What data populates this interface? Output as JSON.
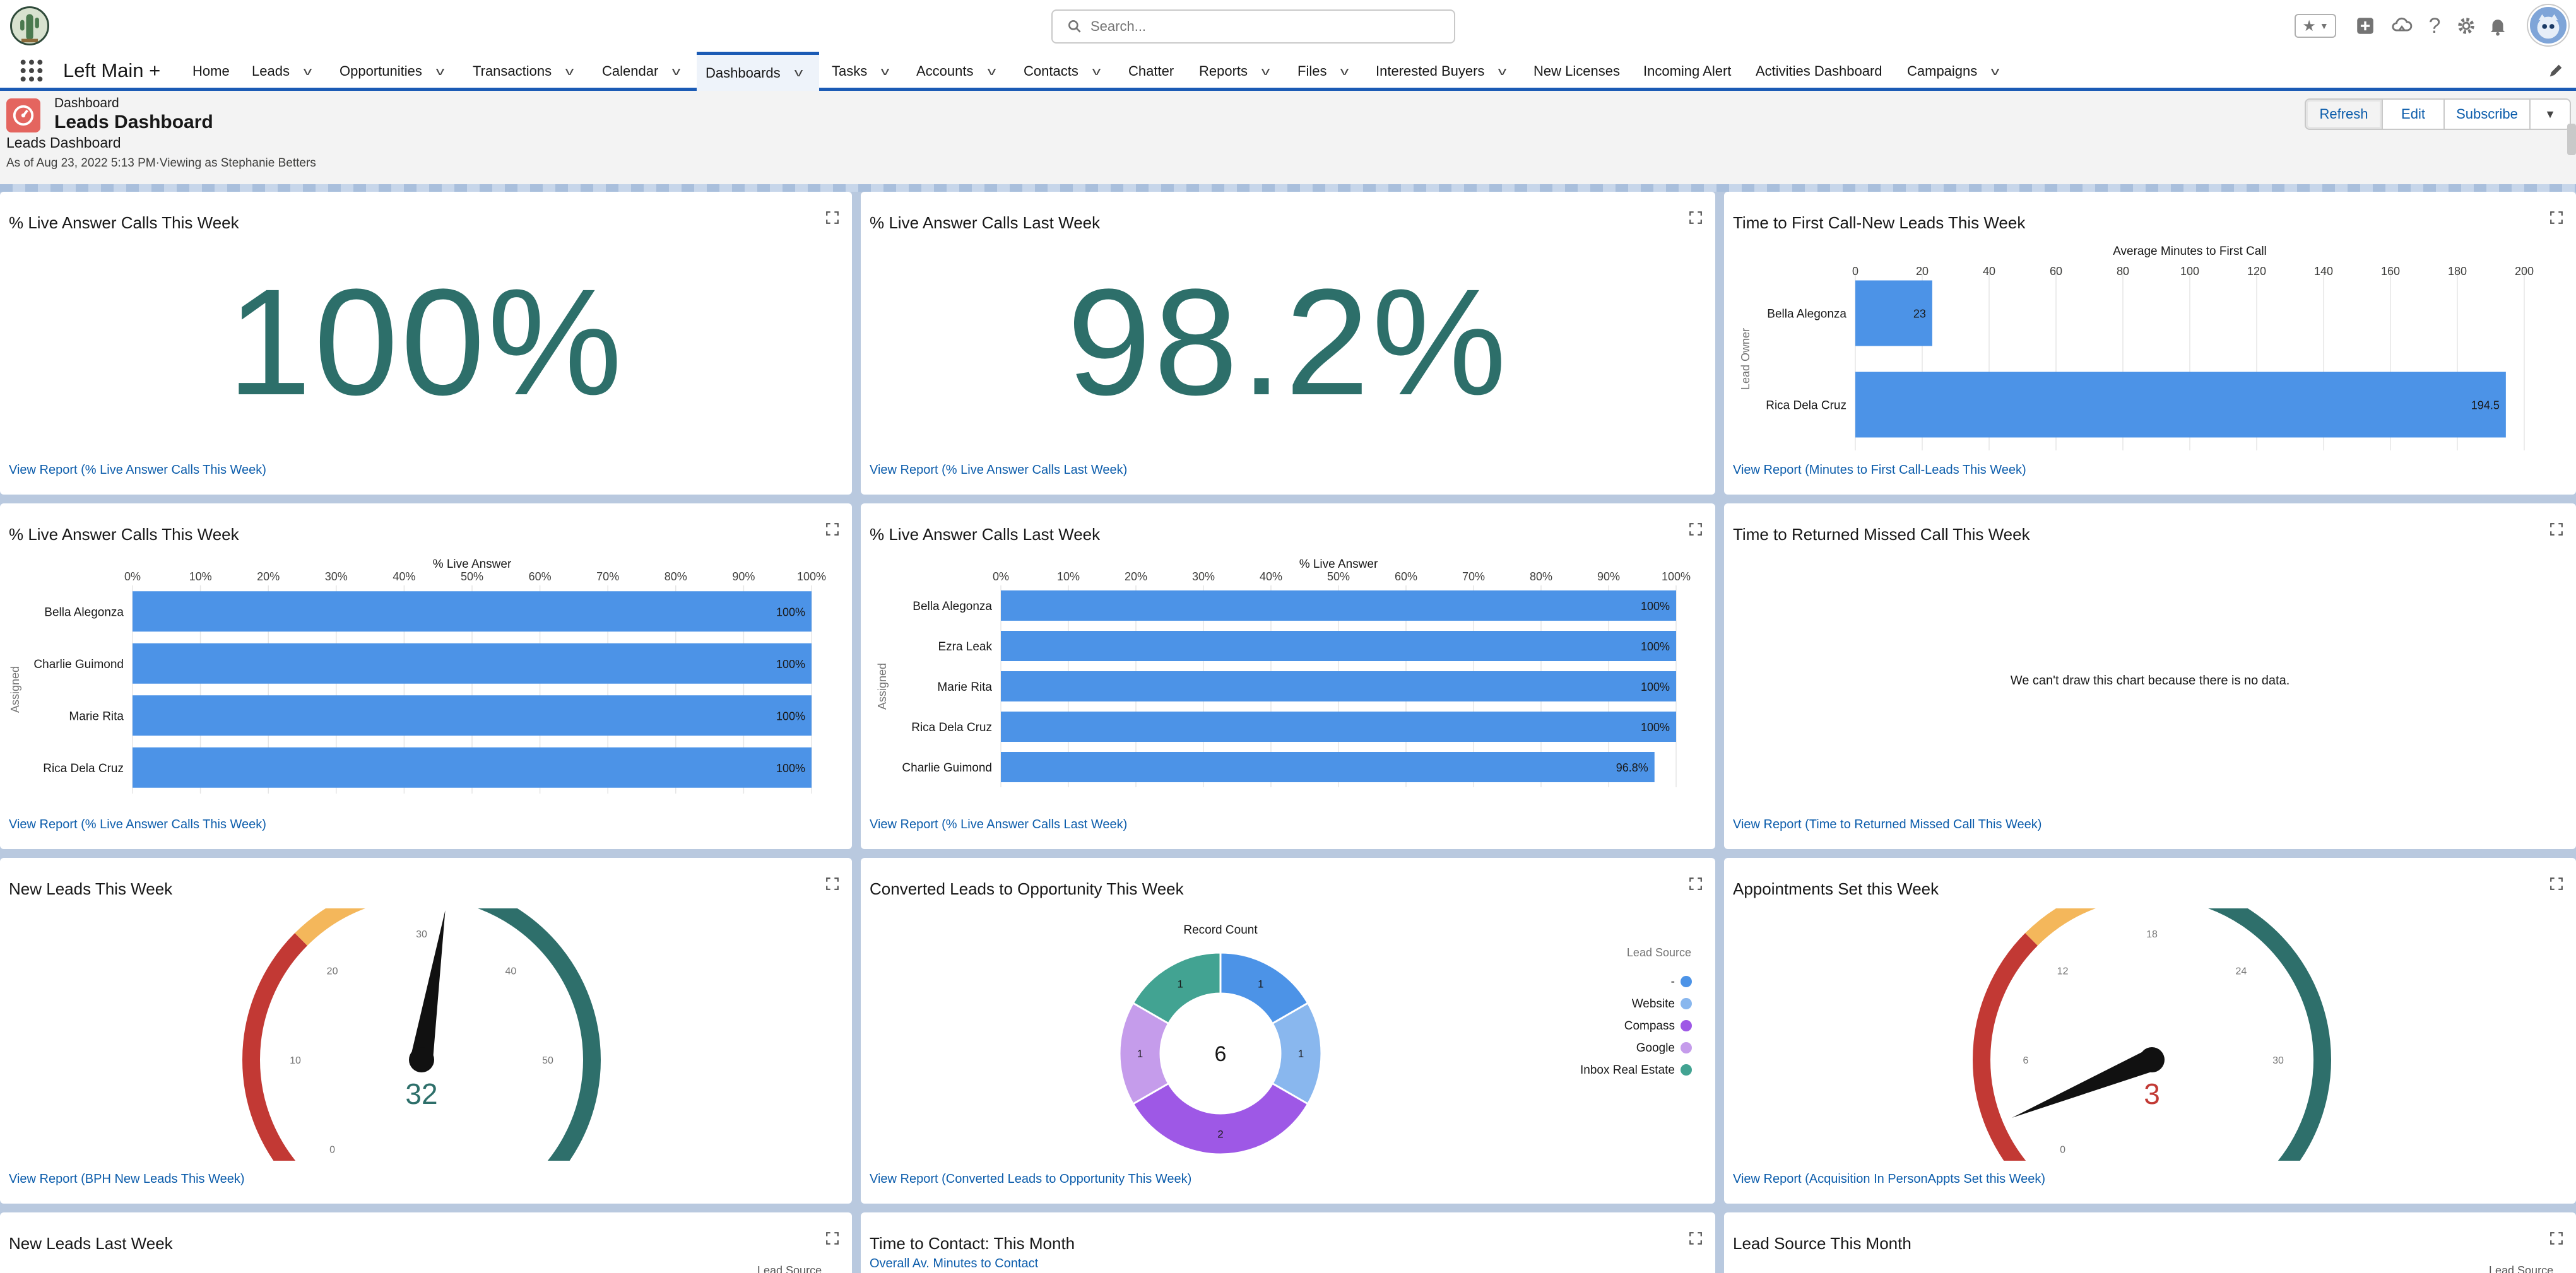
{
  "header": {
    "search_placeholder": "Search...",
    "app_name": "Left Main +",
    "nav": [
      {
        "label": "Home",
        "chevron": false
      },
      {
        "label": "Leads",
        "chevron": true
      },
      {
        "label": "Opportunities",
        "chevron": true
      },
      {
        "label": "Transactions",
        "chevron": true
      },
      {
        "label": "Calendar",
        "chevron": true
      },
      {
        "label": "Dashboards",
        "chevron": true,
        "active": true
      },
      {
        "label": "Tasks",
        "chevron": true
      },
      {
        "label": "Accounts",
        "chevron": true
      },
      {
        "label": "Contacts",
        "chevron": true
      },
      {
        "label": "Chatter",
        "chevron": false
      },
      {
        "label": "Reports",
        "chevron": true
      },
      {
        "label": "Files",
        "chevron": true
      },
      {
        "label": "Interested Buyers",
        "chevron": true
      },
      {
        "label": "New Licenses",
        "chevron": false
      },
      {
        "label": "Incoming Alert",
        "chevron": false
      },
      {
        "label": "Activities Dashboard",
        "chevron": false
      },
      {
        "label": "Campaigns",
        "chevron": true
      }
    ],
    "icons": [
      "favorites-icon",
      "add-icon",
      "trailhead-icon",
      "help-icon",
      "setup-gear-icon",
      "notifications-bell-icon"
    ]
  },
  "page": {
    "breadcrumb": "Dashboard",
    "title": "Leads Dashboard",
    "subtitle": "Leads Dashboard",
    "as_of": "As of Aug 23, 2022 5:13 PM·Viewing as Stephanie Betters",
    "buttons": {
      "refresh": "Refresh",
      "edit": "Edit",
      "subscribe": "Subscribe"
    }
  },
  "colors": {
    "brand_blue": "#0b5cab",
    "bar_blue": "#4c93e7",
    "metric_teal": "#2d6f6a",
    "gauge_red": "#c23934"
  },
  "cards": {
    "c1": {
      "title": "% Live Answer Calls This Week",
      "value": "100%",
      "link": "View Report (% Live Answer Calls This Week)"
    },
    "c2": {
      "title": "% Live Answer Calls Last Week",
      "value": "98.2%",
      "link": "View Report (% Live Answer Calls Last Week)"
    },
    "c3": {
      "title": "Time to First Call-New Leads This Week",
      "link": "View Report (Minutes to First Call-Leads This Week)"
    },
    "c4": {
      "title": "% Live Answer Calls This Week",
      "link": "View Report (% Live Answer Calls This Week)"
    },
    "c5": {
      "title": "% Live Answer Calls Last Week",
      "link": "View Report (% Live Answer Calls Last Week)"
    },
    "c6": {
      "title": "Time to Returned Missed Call This Week",
      "message": "We can't draw this chart because there is no data.",
      "link": "View Report (Time to Returned Missed Call This Week)"
    },
    "c7": {
      "title": "New Leads This Week",
      "link": "View Report (BPH New Leads This Week)"
    },
    "c8": {
      "title": "Converted Leads to Opportunity This Week",
      "link": "View Report (Converted Leads to Opportunity This Week)"
    },
    "c9": {
      "title": "Appointments Set this Week",
      "link": "View Report (Acquisition In PersonAppts Set this Week)"
    },
    "c10": {
      "title": "New Leads Last Week",
      "legend_partial": "Lead Source"
    },
    "c11": {
      "title": "Time to Contact: This Month",
      "subtitle": "Overall Av. Minutes to Contact"
    },
    "c12": {
      "title": "Lead Source This Month",
      "legend_partial": "Lead Source"
    }
  },
  "chart_data": [
    {
      "id": "c3",
      "type": "bar",
      "orientation": "horizontal",
      "title": "Average Minutes to First Call",
      "ylabel": "Lead Owner",
      "categories": [
        "Bella Alegonza",
        "Rica Dela Cruz"
      ],
      "values": [
        23,
        194.5
      ],
      "value_labels": [
        "23",
        "194.5"
      ],
      "xlim": [
        0,
        200
      ],
      "ticks": [
        0,
        20,
        40,
        60,
        80,
        100,
        120,
        140,
        160,
        180,
        200
      ],
      "tick_labels": [
        "0",
        "20",
        "40",
        "60",
        "80",
        "100",
        "120",
        "140",
        "160",
        "180",
        "200"
      ]
    },
    {
      "id": "c4",
      "type": "bar",
      "orientation": "horizontal",
      "title": "% Live Answer",
      "ylabel": "Assigned",
      "categories": [
        "Bella Alegonza",
        "Charlie Guimond",
        "Marie Rita",
        "Rica Dela Cruz"
      ],
      "values": [
        100,
        100,
        100,
        100
      ],
      "value_labels": [
        "100%",
        "100%",
        "100%",
        "100%"
      ],
      "xlim": [
        0,
        100
      ],
      "ticks": [
        0,
        10,
        20,
        30,
        40,
        50,
        60,
        70,
        80,
        90,
        100
      ],
      "tick_labels": [
        "0%",
        "10%",
        "20%",
        "30%",
        "40%",
        "50%",
        "60%",
        "70%",
        "80%",
        "90%",
        "100%"
      ]
    },
    {
      "id": "c5",
      "type": "bar",
      "orientation": "horizontal",
      "title": "% Live Answer",
      "ylabel": "Assigned",
      "categories": [
        "Bella Alegonza",
        "Ezra Leak",
        "Marie Rita",
        "Rica Dela Cruz",
        "Charlie Guimond"
      ],
      "values": [
        100,
        100,
        100,
        100,
        96.8
      ],
      "value_labels": [
        "100%",
        "100%",
        "100%",
        "100%",
        "96.8%"
      ],
      "xlim": [
        0,
        100
      ],
      "ticks": [
        0,
        10,
        20,
        30,
        40,
        50,
        60,
        70,
        80,
        90,
        100
      ],
      "tick_labels": [
        "0%",
        "10%",
        "20%",
        "30%",
        "40%",
        "50%",
        "60%",
        "70%",
        "80%",
        "90%",
        "100%"
      ]
    },
    {
      "id": "c7",
      "type": "gauge",
      "value": 32,
      "value_label": "32",
      "range": [
        0,
        60
      ],
      "tick_values": [
        0,
        10,
        20,
        30,
        40,
        50
      ],
      "tick_labels": [
        "0",
        "10",
        "20",
        "30",
        "40",
        "50"
      ],
      "bands": [
        {
          "from": 0,
          "to": 20,
          "color": "#c23934"
        },
        {
          "from": 20,
          "to": 30,
          "color": "#f4b75b"
        },
        {
          "from": 30,
          "to": 60,
          "color": "#2e6f6b"
        }
      ],
      "value_color": "#2d6f6a"
    },
    {
      "id": "c8",
      "type": "pie",
      "donut": true,
      "title": "Record Count",
      "total_label": "6",
      "legend_title": "Lead Source",
      "slices": [
        {
          "label": "-",
          "value": 1,
          "color": "#4c93e7"
        },
        {
          "label": "Website",
          "value": 1,
          "color": "#89b7ee"
        },
        {
          "label": "Compass",
          "value": 2,
          "color": "#9e58e6"
        },
        {
          "label": "Google",
          "value": 1,
          "color": "#c59ceb"
        },
        {
          "label": "Inbox Real Estate",
          "value": 1,
          "color": "#42a392"
        }
      ]
    },
    {
      "id": "c9",
      "type": "gauge",
      "value": 3,
      "value_label": "3",
      "range": [
        0,
        36
      ],
      "tick_values": [
        0,
        6,
        12,
        18,
        24,
        30
      ],
      "tick_labels": [
        "0",
        "6",
        "12",
        "18",
        "24",
        "30"
      ],
      "bands": [
        {
          "from": 0,
          "to": 12,
          "color": "#c23934"
        },
        {
          "from": 12,
          "to": 18,
          "color": "#f4b75b"
        },
        {
          "from": 18,
          "to": 36,
          "color": "#2e6f6b"
        }
      ],
      "value_color": "#c23934"
    }
  ]
}
